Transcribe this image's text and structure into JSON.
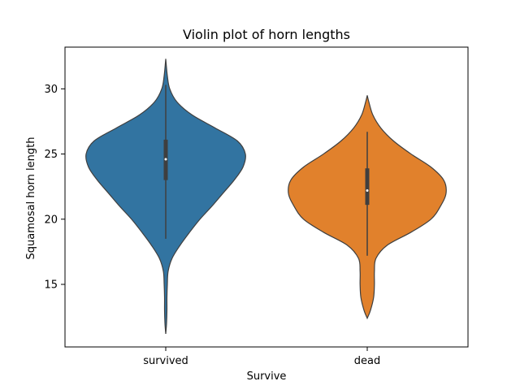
{
  "chart_data": {
    "type": "violin",
    "title": "Violin plot  of horn lengths",
    "xlabel": "Survive",
    "ylabel": "Squamosal horn length",
    "categories": [
      "survived",
      "dead"
    ],
    "ylim": [
      10.2,
      33.2
    ],
    "yticks": [
      15,
      20,
      25,
      30
    ],
    "grid": false,
    "series": [
      {
        "category": "survived",
        "color": "#3274a1",
        "range": [
          11.2,
          32.3
        ],
        "whisker": [
          18.5,
          30.3
        ],
        "iqr": [
          23.0,
          26.1
        ],
        "median": 24.6,
        "profile": [
          [
            11.2,
            0.0
          ],
          [
            12.0,
            0.01
          ],
          [
            13.0,
            0.015
          ],
          [
            14.0,
            0.015
          ],
          [
            15.0,
            0.02
          ],
          [
            16.0,
            0.03
          ],
          [
            17.0,
            0.08
          ],
          [
            18.0,
            0.18
          ],
          [
            19.0,
            0.3
          ],
          [
            20.0,
            0.43
          ],
          [
            21.0,
            0.58
          ],
          [
            22.0,
            0.72
          ],
          [
            23.0,
            0.86
          ],
          [
            24.0,
            0.97
          ],
          [
            25.0,
            1.0
          ],
          [
            26.0,
            0.9
          ],
          [
            27.0,
            0.62
          ],
          [
            28.0,
            0.33
          ],
          [
            29.0,
            0.14
          ],
          [
            30.0,
            0.05
          ],
          [
            31.0,
            0.02
          ],
          [
            32.3,
            0.0
          ]
        ]
      },
      {
        "category": "dead",
        "color": "#e1812c",
        "range": [
          12.4,
          29.5
        ],
        "whisker": [
          17.2,
          26.7
        ],
        "iqr": [
          21.1,
          23.9
        ],
        "median": 22.2,
        "profile": [
          [
            12.4,
            0.0
          ],
          [
            13.0,
            0.04
          ],
          [
            14.0,
            0.08
          ],
          [
            15.0,
            0.09
          ],
          [
            16.0,
            0.09
          ],
          [
            17.0,
            0.11
          ],
          [
            18.0,
            0.25
          ],
          [
            19.0,
            0.55
          ],
          [
            20.0,
            0.8
          ],
          [
            21.0,
            0.92
          ],
          [
            22.0,
            0.99
          ],
          [
            23.0,
            0.96
          ],
          [
            24.0,
            0.8
          ],
          [
            25.0,
            0.55
          ],
          [
            26.0,
            0.33
          ],
          [
            27.0,
            0.17
          ],
          [
            28.0,
            0.07
          ],
          [
            29.0,
            0.02
          ],
          [
            29.5,
            0.0
          ]
        ]
      }
    ]
  }
}
